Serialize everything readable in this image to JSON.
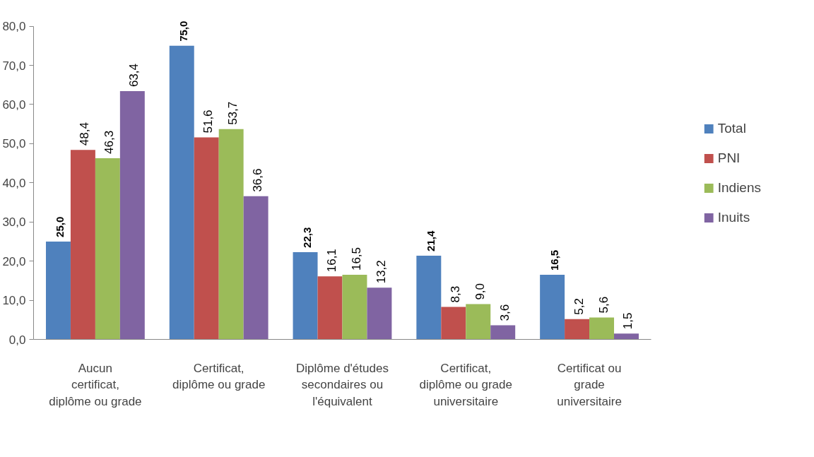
{
  "chart_data": {
    "type": "bar",
    "categories": [
      "Aucun certificat, diplôme ou grade",
      "Certificat, diplôme ou grade",
      "Diplôme d'études secondaires ou l'équivalent",
      "Certificat, diplôme ou grade universitaire",
      "Certificat ou grade universitaire"
    ],
    "series": [
      {
        "name": "Total",
        "color": "#4f81bd",
        "values": [
          25.0,
          75.0,
          22.3,
          21.4,
          16.5
        ],
        "value_labels": [
          "25,0",
          "75,0",
          "22,3",
          "21,4",
          "16,5"
        ]
      },
      {
        "name": "PNI",
        "color": "#c0504d",
        "values": [
          48.4,
          51.6,
          16.1,
          8.3,
          5.2
        ],
        "value_labels": [
          "48,4",
          "51,6",
          "16,1",
          "8,3",
          "5,2"
        ]
      },
      {
        "name": "Indiens",
        "color": "#9bbb59",
        "values": [
          46.3,
          53.7,
          16.5,
          9.0,
          5.6
        ],
        "value_labels": [
          "46,3",
          "53,7",
          "16,5",
          "9,0",
          "5,6"
        ]
      },
      {
        "name": "Inuits",
        "color": "#8064a2",
        "values": [
          63.4,
          36.6,
          13.2,
          3.6,
          1.5
        ],
        "value_labels": [
          "63,4",
          "36,6",
          "13,2",
          "3,6",
          "1,5"
        ]
      }
    ],
    "ylim": [
      0,
      80
    ],
    "yticks": [
      {
        "value": 0,
        "label": "0,0"
      },
      {
        "value": 10,
        "label": "10,0"
      },
      {
        "value": 20,
        "label": "20,0"
      },
      {
        "value": 30,
        "label": "30,0"
      },
      {
        "value": 40,
        "label": "40,0"
      },
      {
        "value": 50,
        "label": "50,0"
      },
      {
        "value": 60,
        "label": "60,0"
      },
      {
        "value": 70,
        "label": "70,0"
      },
      {
        "value": 80,
        "label": "80,0"
      }
    ],
    "grid": false,
    "legend": "right"
  }
}
